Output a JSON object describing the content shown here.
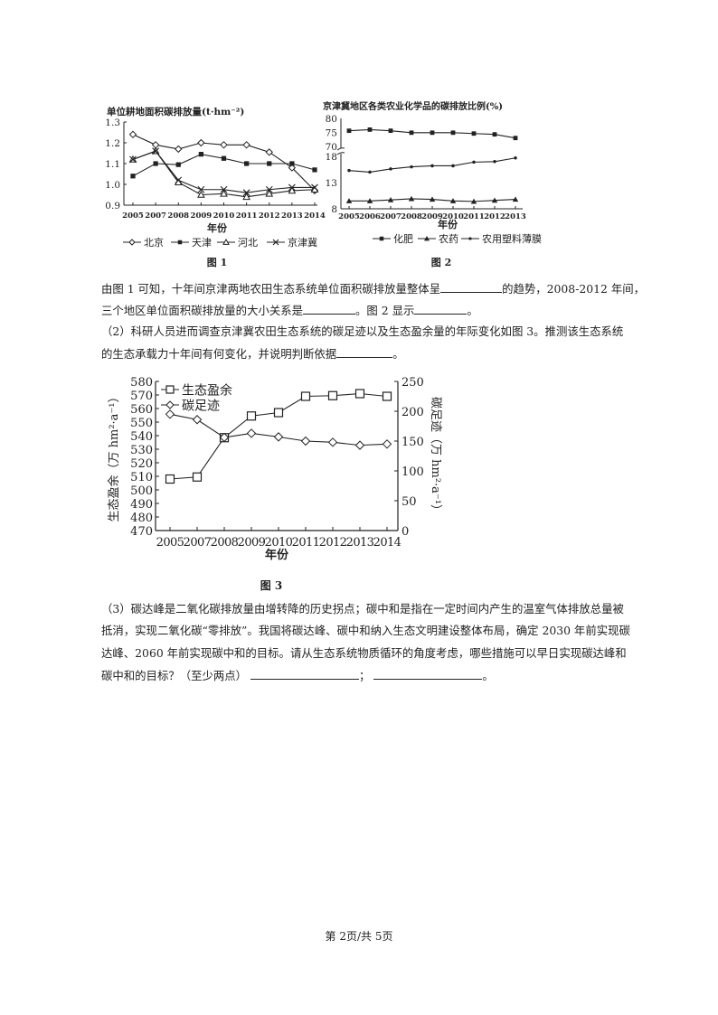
{
  "paragraphs": {
    "p1": {
      "a": "由图 1 可知，十年间京津两地农田生态系统单位面积碳排放量整体呈",
      "b": "的趋势，2008-2012 年间，"
    },
    "p2": {
      "a": "三个地区单位面积碳排放量的大小关系是",
      "b": "。图 2 显示",
      "c": "。"
    },
    "p3": "（2）科研人员进而调查京津冀农田生态系统的碳足迹以及生态盈余量的年际变化如图 3。推测该生态系统",
    "p4": {
      "a": "的生态承载力十年间有何变化，并说明判断依据",
      "b": "。"
    },
    "p5": "（3）碳达峰是二氧化碳排放量由增转降的历史拐点；碳中和是指在一定时间内产生的温室气体排放总量被",
    "p6": "抵消，实现二氧化碳“零排放”。我国将碳达峰、碳中和纳入生态文明建设整体布局，确定 2030 年前实现碳",
    "p7": "达峰、2060 年前实现碳中和的目标。请从生态系统物质循环的角度考虑，哪些措施可以早日实现碳达峰和",
    "p8": {
      "a": "碳中和的目标？（至少两点）",
      "b": "；",
      "c": "。"
    }
  },
  "footer": "第 2页/共 5页",
  "chart_data": [
    {
      "type": "line",
      "caption": "图 1",
      "title": "单位耕地面积碳排放量(t·hm⁻²)",
      "xlabel": "年份",
      "categories": [
        "2005",
        "2007",
        "2008",
        "2009",
        "2010",
        "2011",
        "2012",
        "2013",
        "2014"
      ],
      "yticks": [
        "1.3",
        "1.2",
        "1.1",
        "1.0",
        "0.9"
      ],
      "ylim": [
        0.9,
        1.3
      ],
      "legend_position": "bottom",
      "series": [
        {
          "name": "北京",
          "marker": "open-diamond",
          "values": [
            1.24,
            1.19,
            1.17,
            1.2,
            1.19,
            1.19,
            1.155,
            1.08,
            0.97
          ]
        },
        {
          "name": "天津",
          "marker": "filled-square",
          "values": [
            1.04,
            1.1,
            1.095,
            1.145,
            1.125,
            1.1,
            1.1,
            1.1,
            1.07
          ]
        },
        {
          "name": "河北",
          "marker": "open-triangle",
          "values": [
            1.12,
            1.16,
            1.01,
            0.95,
            0.955,
            0.94,
            0.955,
            0.97,
            0.975
          ]
        },
        {
          "name": "京津冀",
          "marker": "x-cross",
          "values": [
            1.12,
            1.16,
            1.02,
            0.975,
            0.975,
            0.96,
            0.975,
            0.985,
            0.985
          ]
        }
      ]
    },
    {
      "type": "line",
      "caption": "图 2",
      "title": "京津冀地区各类农业化学品的碳排放比例(%)",
      "xlabel": "年份",
      "categories": [
        "2005",
        "2006",
        "2007",
        "2008",
        "2009",
        "2010",
        "2011",
        "2012",
        "2013"
      ],
      "yticks": [
        "80",
        "75",
        "70",
        "18",
        "13",
        "8"
      ],
      "ylim": [
        8,
        80
      ],
      "axis_break": [
        18,
        70
      ],
      "legend_position": "bottom",
      "series": [
        {
          "name": "化肥",
          "marker": "filled-square",
          "values": [
            75.6,
            76.0,
            75.6,
            74.9,
            74.9,
            74.9,
            74.6,
            74.3,
            73.0
          ]
        },
        {
          "name": "农药",
          "marker": "filled-triangle",
          "values": [
            9.5,
            9.5,
            9.7,
            9.9,
            9.8,
            9.5,
            9.4,
            9.6,
            9.8
          ]
        },
        {
          "name": "农用塑料薄膜",
          "marker": "dot",
          "values": [
            15.3,
            15.0,
            15.6,
            16.0,
            16.2,
            16.2,
            16.9,
            17.0,
            17.7
          ]
        }
      ]
    },
    {
      "type": "line",
      "caption": "图 3",
      "xlabel": "年份",
      "ylabel_left": "生态盈余（万 hm²·a⁻¹）",
      "ylabel_right": "碳足迹（万 hm²·a⁻¹）",
      "categories": [
        "2005",
        "2007",
        "2008",
        "2009",
        "2010",
        "2011",
        "2012",
        "2013",
        "2014"
      ],
      "yticks_left": [
        "580",
        "570",
        "560",
        "550",
        "540",
        "530",
        "520",
        "510",
        "500",
        "490",
        "480",
        "470"
      ],
      "yticks_right": [
        "250",
        "200",
        "150",
        "100",
        "50",
        "0"
      ],
      "ylim_left": [
        470,
        580
      ],
      "ylim_right": [
        0,
        250
      ],
      "legend_position": "top-left",
      "series": [
        {
          "name": "生态盈余",
          "axis": "left",
          "marker": "open-square",
          "values": [
            508,
            509.5,
            538.5,
            554.5,
            557,
            569,
            569.5,
            571,
            569
          ]
        },
        {
          "name": "碳足迹",
          "axis": "right",
          "marker": "open-diamond",
          "values": [
            195,
            186,
            156,
            163,
            157,
            150,
            148,
            143,
            145
          ]
        }
      ]
    }
  ]
}
